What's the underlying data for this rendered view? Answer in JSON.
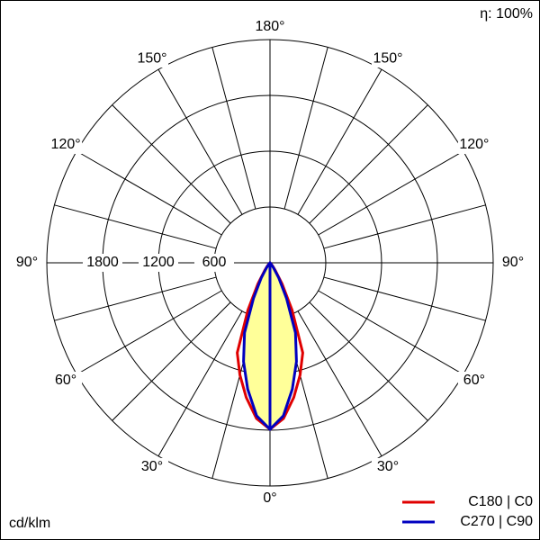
{
  "chart_data": {
    "type": "polar",
    "efficiency_label": "η: 100%",
    "unit_label": "cd/klm",
    "rlim": [
      0,
      2400
    ],
    "rticks": [
      600,
      1200,
      1800
    ],
    "thetaticks": [
      {
        "value": 0,
        "label": "0°"
      },
      {
        "value": 30,
        "label": "30°"
      },
      {
        "value": 60,
        "label": "60°"
      },
      {
        "value": 90,
        "label": "90°"
      },
      {
        "value": 120,
        "label": "120°"
      },
      {
        "value": 150,
        "label": "150°"
      },
      {
        "value": 180,
        "label": "180°"
      }
    ],
    "angles": [
      0,
      5,
      10,
      15,
      20,
      25,
      30,
      35,
      40,
      45,
      50,
      55,
      60,
      65,
      70,
      75,
      80,
      85,
      90
    ],
    "series": [
      {
        "name": "C180 | C0",
        "color": "#e00000",
        "fill": "none",
        "values": [
          1790,
          1680,
          1470,
          1250,
          1030,
          560,
          260,
          100,
          40,
          0,
          0,
          0,
          0,
          0,
          0,
          0,
          0,
          0,
          0
        ]
      },
      {
        "name": "C270 | C90",
        "color": "#0000c0",
        "fill": "#ffff99",
        "values": [
          1790,
          1650,
          1380,
          1100,
          800,
          420,
          190,
          70,
          20,
          0,
          0,
          0,
          0,
          0,
          0,
          0,
          0,
          0,
          0
        ]
      }
    ]
  }
}
